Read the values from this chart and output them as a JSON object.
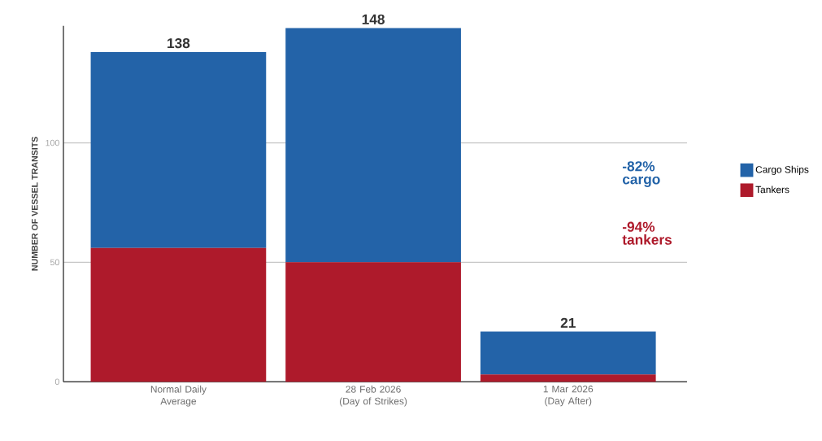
{
  "chart_data": {
    "type": "bar",
    "stacked": true,
    "ylabel": "NUMBER OF VESSEL TRANSITS",
    "categories": [
      "Normal Daily Average",
      "28 Feb 2026 (Day of Strikes)",
      "1 Mar 2026 (Day After)"
    ],
    "series": [
      {
        "name": "Tankers",
        "color": "#ae1a2b",
        "values": [
          56,
          50,
          3
        ]
      },
      {
        "name": "Cargo Ships",
        "color": "#2363a8",
        "values": [
          82,
          98,
          18
        ]
      }
    ],
    "totals": [
      "138",
      "148",
      "21"
    ],
    "ylim": [
      0,
      149
    ],
    "yticks": [
      0,
      50,
      100
    ],
    "grid": "y",
    "legend": "right",
    "annotations": [
      "-82% cargo",
      "-94% tankers"
    ]
  }
}
